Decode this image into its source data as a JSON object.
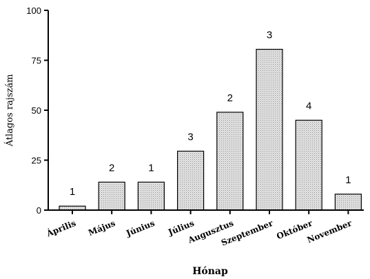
{
  "chart_data": {
    "type": "bar",
    "title": "",
    "xlabel": "Hónap",
    "ylabel": "Átlagos rajszám",
    "ylim": [
      0,
      100
    ],
    "yticks": [
      0,
      25,
      50,
      75,
      100
    ],
    "grid": false,
    "legend": "none",
    "categories": [
      "Április",
      "Május",
      "Június",
      "Július",
      "Augusztus",
      "Szeptember",
      "Október",
      "November"
    ],
    "values": [
      2,
      14,
      14,
      29.5,
      49,
      80.5,
      45,
      8
    ],
    "bar_labels": [
      "1",
      "2",
      "1",
      "3",
      "2",
      "3",
      "4",
      "1"
    ],
    "colors": {
      "bar_fill": "#e6e6e6",
      "bar_dot": "#8c8c8c",
      "axis": "#000000",
      "text": "#000000"
    }
  }
}
